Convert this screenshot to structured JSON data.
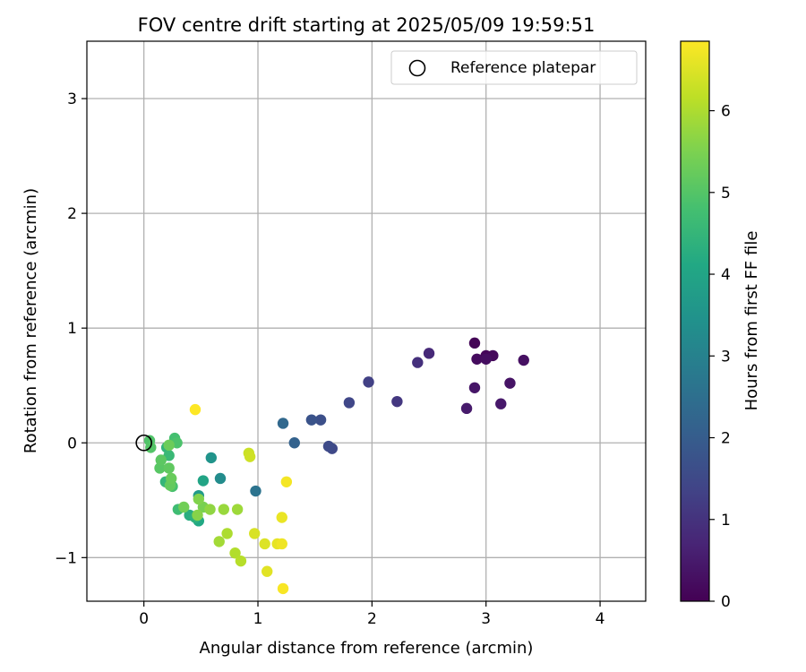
{
  "chart_data": {
    "type": "scatter",
    "title": "FOV centre drift starting at 2025/05/09 19:59:51",
    "xlabel": "Angular distance from reference (arcmin)",
    "ylabel": "Rotation from reference (arcmin)",
    "xlim": [
      -0.5,
      4.4
    ],
    "ylim": [
      -1.38,
      3.5
    ],
    "x_ticks": [
      0,
      1,
      2,
      3,
      4
    ],
    "y_ticks": [
      -1,
      0,
      1,
      2,
      3
    ],
    "x_tick_labels": [
      "0",
      "1",
      "2",
      "3",
      "4"
    ],
    "y_tick_labels": [
      "−1",
      "0",
      "1",
      "2",
      "3"
    ],
    "grid": true,
    "legend": {
      "position": "top-right",
      "entries": [
        {
          "label": "Reference platepar",
          "marker": "open-circle",
          "color": "#000000"
        }
      ]
    },
    "reference_point": {
      "x": 0,
      "y": 0
    },
    "colorbar": {
      "label": "Hours from first FF file",
      "colormap": "viridis",
      "range": [
        0,
        6.85
      ],
      "ticks": [
        0,
        1,
        2,
        3,
        4,
        5,
        6
      ],
      "tick_labels": [
        "0",
        "1",
        "2",
        "3",
        "4",
        "5",
        "6"
      ],
      "colors": [
        "#440154",
        "#482475",
        "#414487",
        "#355f8d",
        "#2a788e",
        "#21918c",
        "#22a884",
        "#44bf70",
        "#7ad151",
        "#bddf26",
        "#fde725"
      ]
    },
    "points": [
      {
        "x": 2.9,
        "y": 0.87,
        "hours": 0.05
      },
      {
        "x": 3.0,
        "y": 0.76,
        "hours": 0.1
      },
      {
        "x": 3.06,
        "y": 0.76,
        "hours": 0.15
      },
      {
        "x": 2.92,
        "y": 0.73,
        "hours": 0.2
      },
      {
        "x": 3.0,
        "y": 0.73,
        "hours": 0.25
      },
      {
        "x": 3.33,
        "y": 0.72,
        "hours": 0.3
      },
      {
        "x": 3.21,
        "y": 0.52,
        "hours": 0.35
      },
      {
        "x": 2.9,
        "y": 0.48,
        "hours": 0.4
      },
      {
        "x": 3.13,
        "y": 0.34,
        "hours": 0.45
      },
      {
        "x": 2.83,
        "y": 0.3,
        "hours": 0.5
      },
      {
        "x": 2.5,
        "y": 0.78,
        "hours": 0.8
      },
      {
        "x": 2.4,
        "y": 0.7,
        "hours": 0.95
      },
      {
        "x": 2.22,
        "y": 0.36,
        "hours": 1.1
      },
      {
        "x": 1.97,
        "y": 0.53,
        "hours": 1.3
      },
      {
        "x": 1.8,
        "y": 0.35,
        "hours": 1.45
      },
      {
        "x": 1.65,
        "y": -0.05,
        "hours": 1.5
      },
      {
        "x": 1.62,
        "y": -0.03,
        "hours": 1.55
      },
      {
        "x": 1.55,
        "y": 0.2,
        "hours": 1.65
      },
      {
        "x": 1.47,
        "y": 0.2,
        "hours": 1.75
      },
      {
        "x": 1.32,
        "y": 0.0,
        "hours": 2.15
      },
      {
        "x": 1.22,
        "y": 0.17,
        "hours": 2.3
      },
      {
        "x": 0.98,
        "y": -0.42,
        "hours": 2.6
      },
      {
        "x": 0.67,
        "y": -0.31,
        "hours": 3.3
      },
      {
        "x": 0.59,
        "y": -0.13,
        "hours": 3.5
      },
      {
        "x": 0.48,
        "y": -0.46,
        "hours": 3.7
      },
      {
        "x": 0.52,
        "y": -0.33,
        "hours": 4.0
      },
      {
        "x": 0.48,
        "y": -0.68,
        "hours": 4.1
      },
      {
        "x": 0.4,
        "y": -0.63,
        "hours": 4.25
      },
      {
        "x": 0.45,
        "y": -0.65,
        "hours": 4.35
      },
      {
        "x": 0.2,
        "y": -0.04,
        "hours": 4.45
      },
      {
        "x": 0.19,
        "y": -0.34,
        "hours": 4.5
      },
      {
        "x": 0.22,
        "y": -0.11,
        "hours": 4.6
      },
      {
        "x": 0.3,
        "y": -0.58,
        "hours": 4.7
      },
      {
        "x": 0.27,
        "y": 0.04,
        "hours": 4.8
      },
      {
        "x": 0.25,
        "y": -0.38,
        "hours": 4.85
      },
      {
        "x": 0.29,
        "y": 0.0,
        "hours": 4.9
      },
      {
        "x": 0.05,
        "y": 0.02,
        "hours": 4.95
      },
      {
        "x": 0.06,
        "y": -0.04,
        "hours": 5.0
      },
      {
        "x": 0.14,
        "y": -0.22,
        "hours": 5.05
      },
      {
        "x": 0.15,
        "y": -0.15,
        "hours": 5.1
      },
      {
        "x": 0.22,
        "y": -0.22,
        "hours": 5.15
      },
      {
        "x": 0.23,
        "y": -0.37,
        "hours": 5.2
      },
      {
        "x": 0.24,
        "y": -0.31,
        "hours": 5.25
      },
      {
        "x": 0.22,
        "y": -0.02,
        "hours": 5.3
      },
      {
        "x": 0.35,
        "y": -0.56,
        "hours": 5.35
      },
      {
        "x": 0.52,
        "y": -0.56,
        "hours": 5.45
      },
      {
        "x": 0.48,
        "y": -0.49,
        "hours": 5.55
      },
      {
        "x": 0.47,
        "y": -0.63,
        "hours": 5.6
      },
      {
        "x": 0.58,
        "y": -0.58,
        "hours": 5.7
      },
      {
        "x": 0.7,
        "y": -0.58,
        "hours": 5.8
      },
      {
        "x": 0.82,
        "y": -0.58,
        "hours": 5.85
      },
      {
        "x": 0.66,
        "y": -0.86,
        "hours": 5.9
      },
      {
        "x": 0.73,
        "y": -0.79,
        "hours": 6.0
      },
      {
        "x": 0.8,
        "y": -0.96,
        "hours": 6.05
      },
      {
        "x": 0.85,
        "y": -1.03,
        "hours": 6.1
      },
      {
        "x": 0.92,
        "y": -0.09,
        "hours": 6.3
      },
      {
        "x": 0.93,
        "y": -0.12,
        "hours": 6.35
      },
      {
        "x": 0.97,
        "y": -0.79,
        "hours": 6.45
      },
      {
        "x": 1.06,
        "y": -0.88,
        "hours": 6.5
      },
      {
        "x": 1.08,
        "y": -1.12,
        "hours": 6.55
      },
      {
        "x": 1.17,
        "y": -0.88,
        "hours": 6.6
      },
      {
        "x": 1.21,
        "y": -0.65,
        "hours": 6.65
      },
      {
        "x": 1.21,
        "y": -0.88,
        "hours": 6.7
      },
      {
        "x": 1.25,
        "y": -0.34,
        "hours": 6.75
      },
      {
        "x": 1.22,
        "y": -1.27,
        "hours": 6.8
      },
      {
        "x": 0.45,
        "y": 0.29,
        "hours": 6.85
      }
    ]
  }
}
